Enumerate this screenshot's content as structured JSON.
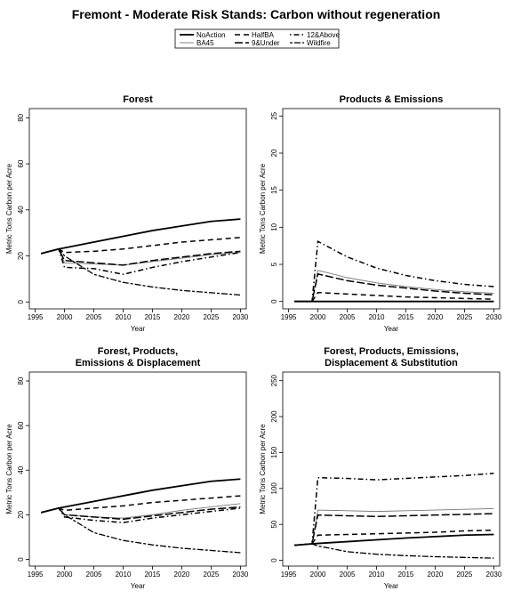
{
  "title": "Fremont  - Moderate Risk Stands: Carbon without regeneration",
  "chart_data": [
    {
      "type": "line",
      "title": [
        "Forest"
      ],
      "xlabel": "Year",
      "ylabel": "Metric Tons Carbon per Acre",
      "x": [
        1996,
        1999,
        2000,
        2005,
        2010,
        2015,
        2020,
        2025,
        2030
      ],
      "xlim": [
        1994,
        2031
      ],
      "xticks": [
        1995,
        2000,
        2005,
        2010,
        2015,
        2020,
        2025,
        2030
      ],
      "ylim": [
        -3,
        84
      ],
      "yticks": [
        0,
        20,
        40,
        60,
        80
      ],
      "series": [
        {
          "name": "NoAction",
          "color": "#000000",
          "style": "solid",
          "values": [
            21,
            23,
            23.5,
            26,
            28.5,
            31,
            33,
            35,
            36
          ]
        },
        {
          "name": "BA45",
          "color": "#777777",
          "style": "thin",
          "values": [
            21,
            23,
            17,
            16.5,
            16,
            17.5,
            19,
            20.5,
            21.5
          ]
        },
        {
          "name": "HalfBA",
          "color": "#000000",
          "style": "dashed",
          "values": [
            21,
            23,
            21.5,
            22,
            23,
            24.5,
            26,
            27,
            28
          ]
        },
        {
          "name": "9&Under",
          "color": "#000000",
          "style": "longdash",
          "values": [
            21,
            23,
            18,
            17,
            16,
            18,
            19.5,
            21,
            22
          ]
        },
        {
          "name": "12&Above",
          "color": "#000000",
          "style": "dotdash",
          "values": [
            21,
            23,
            15,
            14.5,
            12,
            15,
            17.5,
            19.5,
            21.5
          ]
        },
        {
          "name": "Wildfire",
          "color": "#000000",
          "style": "twodash",
          "values": [
            21,
            23,
            20,
            12,
            8.5,
            6.5,
            5,
            4,
            3
          ]
        }
      ]
    },
    {
      "type": "line",
      "title": [
        "Products & Emissions"
      ],
      "xlabel": "Year",
      "ylabel": "Metric Tons Carbon per Acre",
      "x": [
        1996,
        1999,
        2000,
        2005,
        2010,
        2015,
        2020,
        2025,
        2030
      ],
      "xlim": [
        1994,
        2031
      ],
      "xticks": [
        1995,
        2000,
        2005,
        2010,
        2015,
        2020,
        2025,
        2030
      ],
      "ylim": [
        -1,
        26
      ],
      "yticks": [
        0,
        5,
        10,
        15,
        20,
        25
      ],
      "series": [
        {
          "name": "NoAction",
          "color": "#000000",
          "style": "solid",
          "values": [
            0,
            0,
            0,
            0,
            0,
            0,
            0,
            0,
            0
          ]
        },
        {
          "name": "BA45",
          "color": "#777777",
          "style": "thin",
          "values": [
            0,
            0,
            4.2,
            3.2,
            2.5,
            2,
            1.6,
            1.3,
            1.1
          ]
        },
        {
          "name": "HalfBA",
          "color": "#000000",
          "style": "dashed",
          "values": [
            0,
            0,
            1.2,
            1,
            0.8,
            0.6,
            0.5,
            0.4,
            0.3
          ]
        },
        {
          "name": "9&Under",
          "color": "#000000",
          "style": "longdash",
          "values": [
            0,
            0,
            3.7,
            2.8,
            2.2,
            1.8,
            1.4,
            1.1,
            0.9
          ]
        },
        {
          "name": "12&Above",
          "color": "#000000",
          "style": "dotdash",
          "values": [
            0,
            0,
            8.1,
            6,
            4.5,
            3.5,
            2.8,
            2.3,
            2
          ]
        },
        {
          "name": "Wildfire",
          "color": "#000000",
          "style": "twodash",
          "values": [
            0,
            0,
            0,
            0,
            0,
            0,
            0,
            0,
            0
          ]
        }
      ]
    },
    {
      "type": "line",
      "title": [
        "Forest, Products,",
        "Emissions & Displacement"
      ],
      "xlabel": "Year",
      "ylabel": "Metric Tons Carbon per Acre",
      "x": [
        1996,
        1999,
        2000,
        2005,
        2010,
        2015,
        2020,
        2025,
        2030
      ],
      "xlim": [
        1994,
        2031
      ],
      "xticks": [
        1995,
        2000,
        2005,
        2010,
        2015,
        2020,
        2025,
        2030
      ],
      "ylim": [
        -3,
        84
      ],
      "yticks": [
        0,
        20,
        40,
        60,
        80
      ],
      "series": [
        {
          "name": "NoAction",
          "color": "#000000",
          "style": "solid",
          "values": [
            21,
            23,
            23.5,
            26,
            28.5,
            31,
            33,
            35,
            36
          ]
        },
        {
          "name": "BA45",
          "color": "#777777",
          "style": "thin",
          "values": [
            21,
            23,
            20,
            19,
            18.5,
            20,
            22,
            23.5,
            25
          ]
        },
        {
          "name": "HalfBA",
          "color": "#000000",
          "style": "dashed",
          "values": [
            21,
            23,
            22,
            23,
            24,
            25.5,
            26.5,
            27.5,
            28.5
          ]
        },
        {
          "name": "9&Under",
          "color": "#000000",
          "style": "longdash",
          "values": [
            21,
            23,
            20,
            19,
            18,
            19.5,
            21,
            22.5,
            23.5
          ]
        },
        {
          "name": "12&Above",
          "color": "#000000",
          "style": "dotdash",
          "values": [
            21,
            23,
            19,
            17.5,
            16.5,
            18.5,
            20,
            21.5,
            23
          ]
        },
        {
          "name": "Wildfire",
          "color": "#000000",
          "style": "twodash",
          "values": [
            21,
            23,
            20,
            12,
            8.5,
            6.5,
            5,
            4,
            3
          ]
        }
      ]
    },
    {
      "type": "line",
      "title": [
        "Forest, Products, Emissions,",
        "Displacement & Substitution"
      ],
      "xlabel": "Year",
      "ylabel": "Metric Tons Carbon per Acre",
      "x": [
        1996,
        1999,
        2000,
        2005,
        2010,
        2015,
        2020,
        2025,
        2030
      ],
      "xlim": [
        1994,
        2031
      ],
      "xticks": [
        1995,
        2000,
        2005,
        2010,
        2015,
        2020,
        2025,
        2030
      ],
      "ylim": [
        -8,
        262
      ],
      "yticks": [
        0,
        50,
        100,
        150,
        200,
        250
      ],
      "series": [
        {
          "name": "NoAction",
          "color": "#000000",
          "style": "solid",
          "values": [
            21,
            23,
            23.5,
            26,
            28.5,
            31,
            33,
            35,
            36
          ]
        },
        {
          "name": "BA45",
          "color": "#777777",
          "style": "thin",
          "values": [
            21,
            23,
            70,
            69,
            68,
            69,
            70,
            71,
            72
          ]
        },
        {
          "name": "HalfBA",
          "color": "#000000",
          "style": "dashed",
          "values": [
            21,
            23,
            35,
            36,
            37,
            38,
            39,
            41,
            42
          ]
        },
        {
          "name": "9&Under",
          "color": "#000000",
          "style": "longdash",
          "values": [
            21,
            23,
            63,
            62,
            61,
            62,
            63,
            64,
            65
          ]
        },
        {
          "name": "12&Above",
          "color": "#000000",
          "style": "dotdash",
          "values": [
            21,
            23,
            115,
            114,
            112,
            114,
            116,
            118,
            121
          ]
        },
        {
          "name": "Wildfire",
          "color": "#000000",
          "style": "twodash",
          "values": [
            21,
            23,
            20,
            12,
            8.5,
            6.5,
            5,
            4,
            3
          ]
        }
      ]
    }
  ]
}
